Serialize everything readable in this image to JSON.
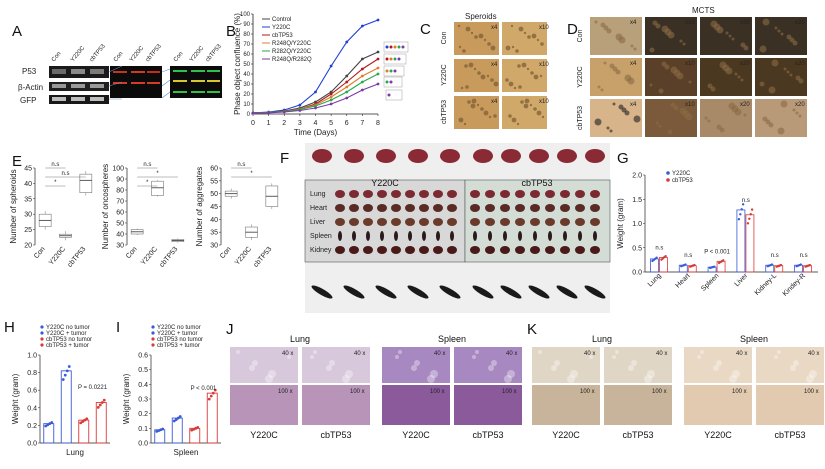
{
  "panels": {
    "A": {
      "letter": "A",
      "labels": [
        "Con",
        "Y220C",
        "cbTP53"
      ],
      "rows": [
        "P53",
        "β-Actin",
        "GFP"
      ],
      "labels2": [
        "Con",
        "Y220C",
        "cbTP53"
      ]
    },
    "B": {
      "letter": "B"
    },
    "C": {
      "letter": "C",
      "title": "Speroids",
      "rows": [
        "Con",
        "Y220C",
        "cbTP53"
      ],
      "mags": [
        "x4",
        "x10"
      ]
    },
    "D": {
      "letter": "D",
      "title": "MCTS",
      "rows": [
        "Con",
        "Y220C",
        "cbTP53"
      ],
      "mags": [
        "x4",
        "x10",
        "x20",
        "x20"
      ]
    },
    "E": {
      "letter": "E"
    },
    "F": {
      "letter": "F",
      "left": "Y220C",
      "right": "cbTP53",
      "organs": [
        "Lung",
        "Heart",
        "Liver",
        "Spleen",
        "Kidney"
      ]
    },
    "G": {
      "letter": "G"
    },
    "H": {
      "letter": "H"
    },
    "I": {
      "letter": "I"
    },
    "J": {
      "letter": "J",
      "top": [
        "Lung",
        "Spleen"
      ],
      "bottom": [
        "Y220C",
        "cbTP53",
        "Y220C",
        "cbTP53"
      ],
      "mags": [
        "40 x",
        "100 x"
      ]
    },
    "K": {
      "letter": "K",
      "top": [
        "Lung",
        "Spleen"
      ],
      "bottom": [
        "Y220C",
        "cbTP53",
        "Y220C",
        "cbTP53"
      ],
      "mags": [
        "40 x",
        "100 x"
      ]
    }
  },
  "chart_data": [
    {
      "panel": "B",
      "type": "line",
      "xlabel": "Time (Days)",
      "ylabel": "Phase object confluence (%)",
      "xlim": [
        0,
        8
      ],
      "ylim": [
        0,
        100
      ],
      "xticks": [
        0,
        1,
        2,
        3,
        4,
        5,
        6,
        7,
        8
      ],
      "yticks": [
        0,
        10,
        20,
        30,
        40,
        50,
        60,
        70,
        80,
        90,
        100
      ],
      "x": [
        0,
        1,
        2,
        3,
        4,
        5,
        6,
        7,
        8
      ],
      "series": [
        {
          "name": "Control",
          "color": "#444444",
          "values": [
            1,
            1.5,
            3,
            6,
            12,
            22,
            38,
            55,
            62
          ]
        },
        {
          "name": "Y220C",
          "color": "#1f3fd6",
          "values": [
            1,
            2,
            4,
            9,
            22,
            48,
            72,
            88,
            94
          ]
        },
        {
          "name": "cbTP53",
          "color": "#b01a1a",
          "values": [
            1,
            1.5,
            3,
            5,
            10,
            20,
            32,
            45,
            55
          ]
        },
        {
          "name": "R248Q/Y220C",
          "color": "#e07b2a",
          "values": [
            1,
            1.5,
            2.5,
            5,
            9,
            17,
            27,
            38,
            46
          ]
        },
        {
          "name": "R282Q/Y220C",
          "color": "#2aa84a",
          "values": [
            1,
            1.5,
            2.5,
            4.5,
            8,
            14,
            22,
            32,
            40
          ]
        },
        {
          "name": "R248Q/R282Q",
          "color": "#7a3aa8",
          "values": [
            1,
            1.2,
            2,
            3.5,
            6,
            10,
            16,
            24,
            30
          ]
        }
      ]
    },
    {
      "panel": "E1",
      "type": "box",
      "ylabel": "Number of spheroids",
      "ylim": [
        20,
        45
      ],
      "yticks": [
        20,
        25,
        30,
        35,
        40,
        45
      ],
      "categories": [
        "Con",
        "Y220C",
        "cbTP53"
      ],
      "boxes": [
        {
          "q1": 26,
          "med": 28,
          "q3": 30
        },
        {
          "q1": 22.5,
          "med": 23,
          "q3": 23.5
        },
        {
          "q1": 37,
          "med": 41,
          "q3": 43
        }
      ],
      "annotations": [
        "n.s",
        "n.s",
        "*"
      ]
    },
    {
      "panel": "E2",
      "type": "box",
      "ylabel": "Number of oncospheres",
      "ylim": [
        30,
        100
      ],
      "yticks": [
        30,
        40,
        50,
        60,
        70,
        80,
        90,
        100
      ],
      "categories": [
        "Con",
        "Y220C",
        "cbTP53"
      ],
      "boxes": [
        {
          "q1": 40,
          "med": 42,
          "q3": 44
        },
        {
          "q1": 75,
          "med": 82,
          "q3": 88
        },
        {
          "q1": 33,
          "med": 34,
          "q3": 35
        }
      ],
      "annotations": [
        "n.s",
        "*",
        "*"
      ]
    },
    {
      "panel": "E3",
      "type": "box",
      "ylabel": "Number of aggregates",
      "ylim": [
        30,
        60
      ],
      "yticks": [
        30,
        35,
        40,
        45,
        50,
        55,
        60
      ],
      "categories": [
        "Con",
        "Y220C",
        "cbTP53"
      ],
      "boxes": [
        {
          "q1": 49,
          "med": 50,
          "q3": 51
        },
        {
          "q1": 33,
          "med": 35,
          "q3": 37
        },
        {
          "q1": 45,
          "med": 49,
          "q3": 53
        }
      ],
      "annotations": [
        "n.s",
        "*"
      ]
    },
    {
      "panel": "G",
      "type": "bar",
      "ylabel": "Weight (gram)",
      "ylim": [
        0,
        2.0
      ],
      "yticks": [
        0,
        0.5,
        1.0,
        1.5,
        2.0
      ],
      "categories": [
        "Lung",
        "Heart",
        "Spleen",
        "Liver",
        "Kidney-L",
        "Kindey-R"
      ],
      "series": [
        {
          "name": "Y220C",
          "color": "#3a5bd9",
          "values": [
            0.27,
            0.14,
            0.1,
            1.28,
            0.14,
            0.14
          ]
        },
        {
          "name": "cbTP53",
          "color": "#d93a3a",
          "values": [
            0.3,
            0.13,
            0.22,
            1.18,
            0.13,
            0.13
          ]
        }
      ],
      "annotations": [
        "n.s",
        "n.s",
        "P < 0.001",
        "n.s",
        "n.s",
        "n.s"
      ]
    },
    {
      "panel": "H",
      "type": "bar",
      "title": "Lung",
      "ylabel": "Weight (gram)",
      "ylim": [
        0,
        1.0
      ],
      "yticks": [
        0,
        0.2,
        0.4,
        0.6,
        0.8,
        1.0
      ],
      "categories": [
        "Y220C no tumor",
        "Y220C + tumor",
        "cbTP53 no tumor",
        "cbTP53 + tumor"
      ],
      "series": [
        {
          "name": "Lung",
          "colors": [
            "#3a5bd9",
            "#3a5bd9",
            "#d93a3a",
            "#d93a3a"
          ],
          "values": [
            0.22,
            0.82,
            0.26,
            0.46
          ]
        }
      ],
      "annotations": [
        "P = 0.0221"
      ]
    },
    {
      "panel": "I",
      "type": "bar",
      "title": "Spleen",
      "ylabel": "Weight (gram)",
      "ylim": [
        0,
        0.6
      ],
      "yticks": [
        0,
        0.1,
        0.2,
        0.3,
        0.4,
        0.5,
        0.6
      ],
      "categories": [
        "Y220C no tumor",
        "Y220C + tumor",
        "cbTP53 no tumor",
        "cbTP53 + tumor"
      ],
      "series": [
        {
          "name": "Spleen",
          "colors": [
            "#3a5bd9",
            "#3a5bd9",
            "#d93a3a",
            "#d93a3a"
          ],
          "values": [
            0.09,
            0.17,
            0.1,
            0.34
          ]
        }
      ],
      "annotations": [
        "P < 0.001"
      ]
    }
  ]
}
